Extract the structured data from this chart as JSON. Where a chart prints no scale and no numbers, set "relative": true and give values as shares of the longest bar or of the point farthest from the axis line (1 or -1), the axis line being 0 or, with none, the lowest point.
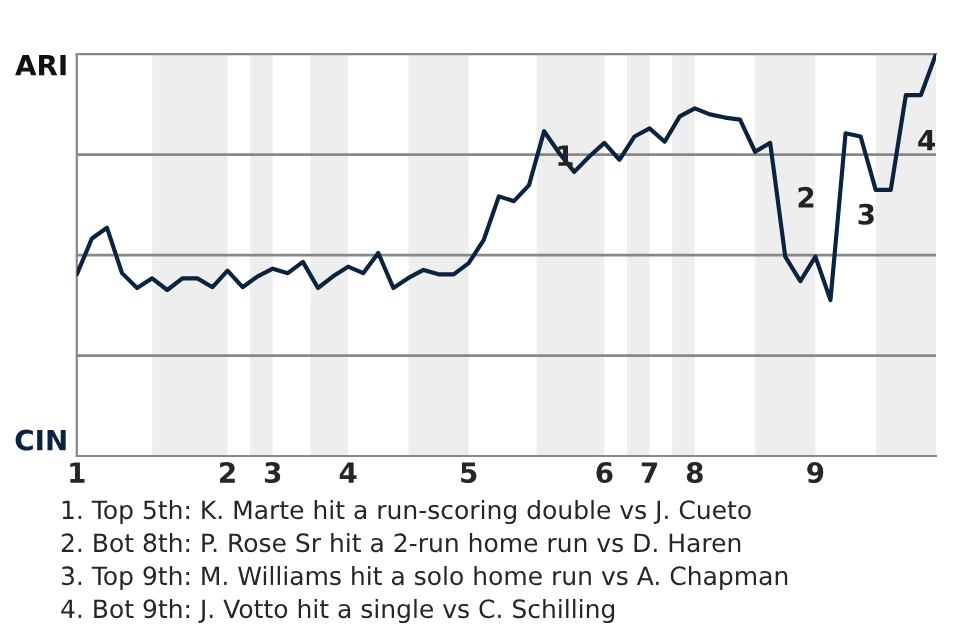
{
  "chart_data": {
    "type": "line",
    "relative": true,
    "categories": [
      "1",
      null,
      null,
      null,
      null,
      null,
      null,
      null,
      null,
      null,
      "2",
      null,
      null,
      "3",
      null,
      null,
      null,
      null,
      "4",
      null,
      null,
      null,
      null,
      null,
      null,
      null,
      "5",
      null,
      null,
      null,
      null,
      null,
      null,
      null,
      null,
      "6",
      null,
      null,
      "7",
      null,
      null,
      "8",
      null,
      null,
      null,
      null,
      null,
      null,
      null,
      "9",
      null,
      null,
      null,
      null,
      null,
      null,
      null,
      null
    ],
    "series": [
      {
        "color": "#0c2340",
        "values": [
          0.452,
          0.541,
          0.568,
          0.455,
          0.418,
          0.442,
          0.413,
          0.442,
          0.442,
          0.42,
          0.461,
          0.42,
          0.447,
          0.466,
          0.455,
          0.483,
          0.418,
          0.447,
          0.471,
          0.455,
          0.505,
          0.418,
          0.443,
          0.463,
          0.452,
          0.452,
          0.48,
          0.538,
          0.646,
          0.634,
          0.674,
          0.808,
          0.754,
          0.707,
          0.745,
          0.779,
          0.737,
          0.795,
          0.815,
          0.782,
          0.845,
          0.865,
          0.85,
          0.842,
          0.837,
          0.757,
          0.779,
          0.496,
          0.435,
          0.496,
          0.388,
          0.803,
          0.795,
          0.662,
          0.662,
          0.898,
          0.898,
          1
        ],
        "name": null
      }
    ],
    "ref_lines": [
      {
        "axis": "y",
        "value": 0.25,
        "color": "#888888"
      },
      {
        "axis": "y",
        "value": 0.5,
        "color": "#888888"
      },
      {
        "axis": "y",
        "value": 0.75,
        "color": "#888888"
      }
    ],
    "annotations": [
      "ARI",
      "CIN",
      "1",
      "2",
      "3",
      "4",
      "1. Top 5th: K. Marte hit a run-scoring double vs J. Cueto",
      "2. Bot 8th: P. Rose Sr hit a 2-run home run vs D. Haren",
      "3. Top 9th: M. Williams hit a solo home run vs A. Chapman",
      "4. Bot 9th: J. Votto hit a single vs C. Schilling"
    ],
    "grid": false,
    "legend": false
  }
}
